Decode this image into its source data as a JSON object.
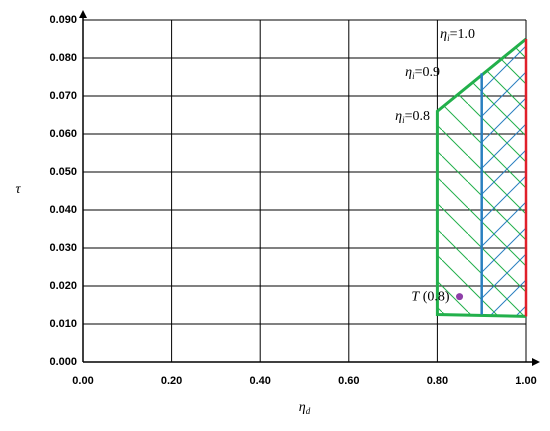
{
  "chart_data": {
    "type": "line",
    "x_label": {
      "symbol": "η",
      "sub": "d"
    },
    "y_label": "τ",
    "xlim": [
      0,
      1.0
    ],
    "ylim": [
      0,
      0.09
    ],
    "xticks": [
      {
        "value": 0,
        "label": "0.00"
      },
      {
        "value": 0.2,
        "label": "0.20"
      },
      {
        "value": 0.4,
        "label": "0.40"
      },
      {
        "value": 0.6,
        "label": "0.60"
      },
      {
        "value": 0.8,
        "label": "0.80"
      },
      {
        "value": 1.0,
        "label": "1.00"
      }
    ],
    "yticks": [
      {
        "value": 0,
        "label": "0.000"
      },
      {
        "value": 0.01,
        "label": "0.010"
      },
      {
        "value": 0.02,
        "label": "0.020"
      },
      {
        "value": 0.03,
        "label": "0.030"
      },
      {
        "value": 0.04,
        "label": "0.040"
      },
      {
        "value": 0.05,
        "label": "0.050"
      },
      {
        "value": 0.06,
        "label": "0.060"
      },
      {
        "value": 0.07,
        "label": "0.070"
      },
      {
        "value": 0.08,
        "label": "0.080"
      },
      {
        "value": 0.09,
        "label": "0.090"
      }
    ],
    "grid": true,
    "series": [
      {
        "name": {
          "symbol": "η",
          "sub": "i",
          "suffix": "=0.8"
        },
        "color": "#22b04b",
        "x": [
          1.0,
          0.8,
          0.8,
          1.0
        ],
        "values": [
          0.012,
          0.0125,
          0.066,
          0.085
        ]
      },
      {
        "name": {
          "symbol": "η",
          "sub": "i",
          "suffix": "=0.9"
        },
        "color": "#2a7fc0",
        "x": [
          0.9,
          0.9
        ],
        "values": [
          0.0125,
          0.076
        ]
      },
      {
        "name": {
          "symbol": "η",
          "sub": "i",
          "suffix": "=1.0"
        },
        "color": "#e0202a",
        "x": [
          1.0,
          1.0
        ],
        "values": [
          0.012,
          0.085
        ]
      }
    ],
    "point": {
      "label": {
        "symbol": "T",
        "suffix": " (0.8)"
      },
      "color": "#8e3fa8",
      "x": 0.85,
      "y": 0.0172
    }
  }
}
